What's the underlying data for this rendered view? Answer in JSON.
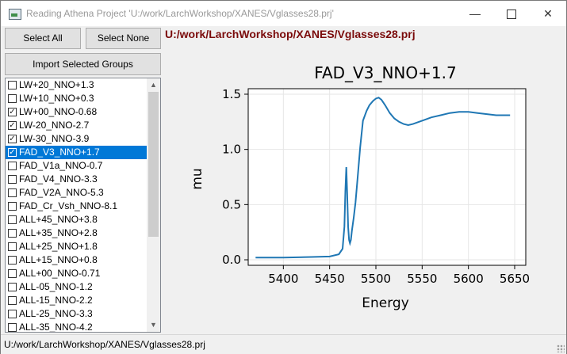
{
  "window": {
    "title": "Reading Athena Project 'U:/work/LarchWorkshop/XANES/Vglasses28.prj'",
    "minimize_glyph": "—",
    "close_glyph": "✕"
  },
  "buttons": {
    "select_all": "Select All",
    "select_none": "Select None",
    "import_selected": "Import Selected Groups"
  },
  "project_path": "U:/work/LarchWorkshop/XANES/Vglasses28.prj",
  "groups": [
    {
      "label": "LW+20_NNO+1.3",
      "checked": false,
      "selected": false
    },
    {
      "label": "LW+10_NNO+0.3",
      "checked": false,
      "selected": false
    },
    {
      "label": "LW+00_NNO-0.68",
      "checked": true,
      "selected": false
    },
    {
      "label": "LW-20_NNO-2.7",
      "checked": true,
      "selected": false
    },
    {
      "label": "LW-30_NNO-3.9",
      "checked": true,
      "selected": false
    },
    {
      "label": "FAD_V3_NNO+1.7",
      "checked": true,
      "selected": true
    },
    {
      "label": "FAD_V1a_NNO-0.7",
      "checked": false,
      "selected": false
    },
    {
      "label": "FAD_V4_NNO-3.3",
      "checked": false,
      "selected": false
    },
    {
      "label": "FAD_V2A_NNO-5.3",
      "checked": false,
      "selected": false
    },
    {
      "label": "FAD_Cr_Vsh_NNO-8.1",
      "checked": false,
      "selected": false
    },
    {
      "label": "ALL+45_NNO+3.8",
      "checked": false,
      "selected": false
    },
    {
      "label": "ALL+35_NNO+2.8",
      "checked": false,
      "selected": false
    },
    {
      "label": "ALL+25_NNO+1.8",
      "checked": false,
      "selected": false
    },
    {
      "label": "ALL+15_NNO+0.8",
      "checked": false,
      "selected": false
    },
    {
      "label": "ALL+00_NNO-0.71",
      "checked": false,
      "selected": false
    },
    {
      "label": "ALL-05_NNO-1.2",
      "checked": false,
      "selected": false
    },
    {
      "label": "ALL-15_NNO-2.2",
      "checked": false,
      "selected": false
    },
    {
      "label": "ALL-25_NNO-3.3",
      "checked": false,
      "selected": false
    },
    {
      "label": "ALL-35_NNO-4.2",
      "checked": false,
      "selected": false
    }
  ],
  "statusbar": {
    "text": "U:/work/LarchWorkshop/XANES/Vglasses28.prj"
  },
  "chart_data": {
    "type": "line",
    "title": "FAD_V3_NNO+1.7",
    "xlabel": "Energy",
    "ylabel": "mu",
    "xlim": [
      5362,
      5662
    ],
    "ylim": [
      -0.05,
      1.55
    ],
    "xticks": [
      5400,
      5450,
      5500,
      5550,
      5600,
      5650
    ],
    "yticks": [
      0.0,
      0.5,
      1.0,
      1.5
    ],
    "ytick_labels": [
      "0.0",
      "0.5",
      "1.0",
      "1.5"
    ],
    "grid": true,
    "line_color": "#1f77b4",
    "series": [
      {
        "x": [
          5370,
          5400,
          5430,
          5450,
          5460,
          5464,
          5466,
          5467,
          5468,
          5469,
          5470,
          5471,
          5472,
          5473,
          5474,
          5476,
          5478,
          5480,
          5483,
          5486,
          5490,
          5493,
          5497,
          5500,
          5503,
          5506,
          5510,
          5515,
          5520,
          5525,
          5530,
          5535,
          5540,
          5550,
          5560,
          5570,
          5580,
          5590,
          5600,
          5610,
          5620,
          5630,
          5645
        ],
        "y": [
          0.02,
          0.02,
          0.025,
          0.03,
          0.05,
          0.1,
          0.3,
          0.62,
          0.84,
          0.6,
          0.3,
          0.18,
          0.15,
          0.18,
          0.26,
          0.38,
          0.52,
          0.72,
          1.02,
          1.26,
          1.35,
          1.4,
          1.44,
          1.46,
          1.47,
          1.45,
          1.4,
          1.33,
          1.28,
          1.25,
          1.23,
          1.22,
          1.23,
          1.26,
          1.29,
          1.31,
          1.33,
          1.34,
          1.34,
          1.33,
          1.32,
          1.31,
          1.31
        ]
      }
    ]
  }
}
